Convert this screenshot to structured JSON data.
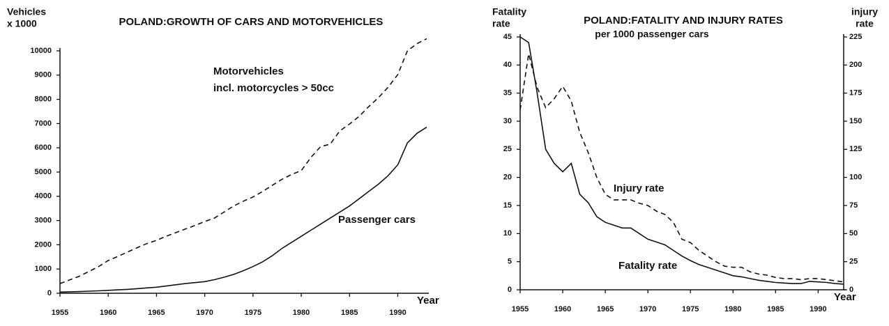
{
  "chart_data": [
    {
      "type": "line",
      "title": "POLAND:GROWTH OF CARS AND MOTORVEHICLES",
      "ylabel": [
        "Vehicles",
        "x 1000"
      ],
      "xlabel": "Year",
      "annotations": [
        "Motorvehicles",
        "incl. motorcycles > 50cc",
        "Passenger cars"
      ],
      "x": [
        1955,
        1956,
        1957,
        1958,
        1959,
        1960,
        1961,
        1962,
        1963,
        1964,
        1965,
        1966,
        1967,
        1968,
        1969,
        1970,
        1971,
        1972,
        1973,
        1974,
        1975,
        1976,
        1977,
        1978,
        1979,
        1980,
        1981,
        1982,
        1983,
        1984,
        1985,
        1986,
        1987,
        1988,
        1989,
        1990,
        1991,
        1992,
        1993
      ],
      "series": [
        {
          "name": "Motorvehicles",
          "color": "#111111",
          "dashed": true,
          "values": [
            400,
            550,
            700,
            900,
            1100,
            1350,
            1520,
            1700,
            1880,
            2050,
            2180,
            2350,
            2500,
            2650,
            2800,
            2960,
            3100,
            3350,
            3600,
            3800,
            3970,
            4200,
            4450,
            4700,
            4900,
            5060,
            5600,
            6050,
            6150,
            6700,
            6980,
            7300,
            7700,
            8070,
            8500,
            9020,
            10000,
            10300,
            10500
          ]
        },
        {
          "name": "Passenger cars",
          "color": "#111111",
          "dashed": false,
          "values": [
            50,
            60,
            70,
            85,
            100,
            120,
            140,
            160,
            190,
            220,
            250,
            300,
            350,
            400,
            440,
            480,
            560,
            660,
            780,
            930,
            1100,
            1300,
            1550,
            1850,
            2100,
            2350,
            2600,
            2850,
            3100,
            3350,
            3600,
            3900,
            4200,
            4500,
            4850,
            5300,
            6200,
            6600,
            6850
          ]
        }
      ],
      "xlim": [
        1955,
        1993
      ],
      "xticks": [
        1955,
        1960,
        1965,
        1970,
        1975,
        1980,
        1985,
        1990
      ],
      "ylim": [
        0,
        10000
      ],
      "yticks": [
        0,
        1000,
        2000,
        3000,
        4000,
        5000,
        6000,
        7000,
        8000,
        9000,
        10000
      ]
    },
    {
      "type": "line",
      "title": "POLAND:FATALITY AND INJURY RATES",
      "subtitle": "per 1000 passenger cars",
      "ylabel": [
        "Fatality",
        "rate"
      ],
      "y2label": [
        "injury",
        "rate"
      ],
      "xlabel": "Year",
      "annotations": [
        "Injury rate",
        "Fatality rate"
      ],
      "x": [
        1955,
        1956,
        1957,
        1958,
        1959,
        1960,
        1961,
        1962,
        1963,
        1964,
        1965,
        1966,
        1967,
        1968,
        1969,
        1970,
        1971,
        1972,
        1973,
        1974,
        1975,
        1976,
        1977,
        1978,
        1979,
        1980,
        1981,
        1982,
        1983,
        1984,
        1985,
        1986,
        1987,
        1988,
        1989,
        1990,
        1991,
        1992,
        1993
      ],
      "series": [
        {
          "name": "Fatality rate",
          "color": "#111111",
          "dashed": false,
          "values": [
            45,
            44,
            35,
            25,
            22.5,
            21,
            22.5,
            17,
            15.5,
            13,
            12,
            11.5,
            11,
            11,
            10,
            9,
            8.5,
            8,
            7,
            6,
            5.2,
            4.5,
            4,
            3.5,
            3,
            2.5,
            2.3,
            2,
            1.7,
            1.5,
            1.3,
            1.2,
            1.1,
            1.1,
            1.5,
            1.4,
            1.3,
            1.1,
            1.0
          ]
        },
        {
          "name": "Injury rate",
          "color": "#111111",
          "dashed": true,
          "axis": "y2",
          "values": [
            160,
            210,
            180,
            162,
            170,
            181,
            168,
            140,
            122,
            100,
            85,
            80,
            80,
            80,
            77,
            75,
            70,
            67,
            60,
            45,
            42,
            35,
            30,
            25,
            21,
            20,
            20,
            16,
            14,
            13,
            11,
            10,
            10,
            9,
            10,
            10,
            9,
            8,
            7
          ]
        }
      ],
      "xlim": [
        1955,
        1993
      ],
      "xticks": [
        1955,
        1960,
        1965,
        1970,
        1975,
        1980,
        1985,
        1990
      ],
      "ylim": [
        0,
        45
      ],
      "yticks": [
        0,
        5,
        10,
        15,
        20,
        25,
        30,
        35,
        40,
        45
      ],
      "y2lim": [
        0,
        225
      ],
      "y2ticks": [
        0,
        25,
        50,
        75,
        100,
        125,
        150,
        175,
        200,
        225
      ]
    }
  ]
}
